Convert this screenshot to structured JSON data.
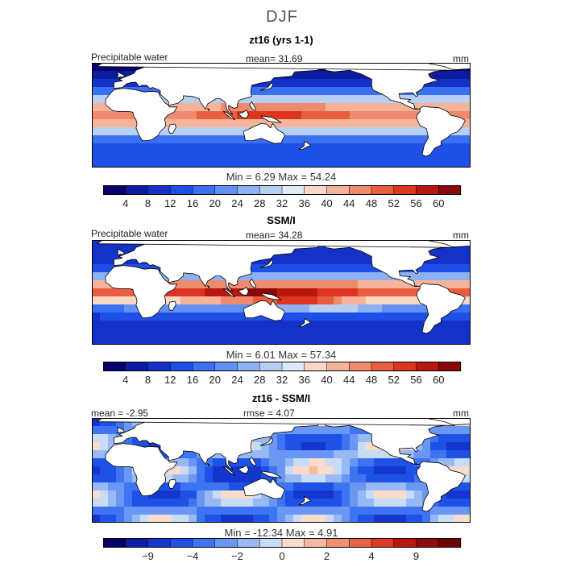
{
  "title": "DJF",
  "panels": [
    {
      "id": "model",
      "title": "zt16 (yrs 1-1)",
      "left_label": "Precipitable water",
      "stat_text": "mean=   31.69",
      "units": "mm",
      "min_max_text": "Min =    6.29  Max =   54.24",
      "field": "model"
    },
    {
      "id": "obs",
      "title": "SSM/I",
      "left_label": "Precipitable water",
      "stat_text": "mean=   34.28",
      "units": "mm",
      "min_max_text": "Min =    6.01  Max =   57.34",
      "field": "obs"
    },
    {
      "id": "diff",
      "title": "zt16 - SSM/I",
      "left_label": "mean =   -2.95",
      "stat_text": "rmse =    4.07",
      "units": "mm",
      "min_max_text": "Min =  -12.34  Max =    4.91",
      "field": "diff"
    }
  ],
  "chart_data": [
    {
      "type": "heatmap",
      "title": "zt16 (yrs 1-1)",
      "variable": "Precipitable water",
      "units": "mm",
      "mean": 31.69,
      "min": 6.29,
      "max": 54.24,
      "contour_levels": [
        4,
        8,
        12,
        16,
        20,
        24,
        28,
        32,
        36,
        40,
        44,
        48,
        52,
        56,
        60
      ],
      "colorbar_labels": [
        "4",
        "8",
        "12",
        "16",
        "20",
        "24",
        "28",
        "32",
        "36",
        "40",
        "44",
        "48",
        "52",
        "56",
        "60"
      ]
    },
    {
      "type": "heatmap",
      "title": "SSM/I",
      "variable": "Precipitable water",
      "units": "mm",
      "mean": 34.28,
      "min": 6.01,
      "max": 57.34,
      "contour_levels": [
        4,
        8,
        12,
        16,
        20,
        24,
        28,
        32,
        36,
        40,
        44,
        48,
        52,
        56,
        60
      ],
      "colorbar_labels": [
        "4",
        "8",
        "12",
        "16",
        "20",
        "24",
        "28",
        "32",
        "36",
        "40",
        "44",
        "48",
        "52",
        "56",
        "60"
      ]
    },
    {
      "type": "heatmap",
      "title": "zt16 - SSM/I",
      "units": "mm",
      "mean": -2.95,
      "rmse": 4.07,
      "min": -12.34,
      "max": 4.91,
      "contour_levels": [
        -12,
        -9,
        -6,
        -4,
        -3,
        -2,
        -1,
        0,
        1,
        2,
        3,
        4,
        6,
        9,
        12
      ],
      "colorbar_labels": [
        "-9",
        "-4",
        "-2",
        "0",
        "2",
        "4",
        "9"
      ]
    }
  ],
  "colors": {
    "pw_scale": [
      "#07006e",
      "#0b1c9e",
      "#1432c8",
      "#1e4fe6",
      "#3a70f2",
      "#6290f4",
      "#8cb2f4",
      "#b8cff4",
      "#ddebf8",
      "#f9d8c6",
      "#f5b49a",
      "#f08a6e",
      "#ea5e40",
      "#dd3520",
      "#b81810",
      "#8a0808"
    ],
    "diff_scale": [
      "#06006b",
      "#0c1ea2",
      "#1536cc",
      "#1e52e6",
      "#3e74f2",
      "#6a96f4",
      "#98baf4",
      "#c8dcf6",
      "#f9dccb",
      "#f5b8a0",
      "#f09072",
      "#e96446",
      "#dc3822",
      "#b81810",
      "#900a0a",
      "#6e0505"
    ],
    "land": "#ffffff",
    "coast": "#000000"
  }
}
